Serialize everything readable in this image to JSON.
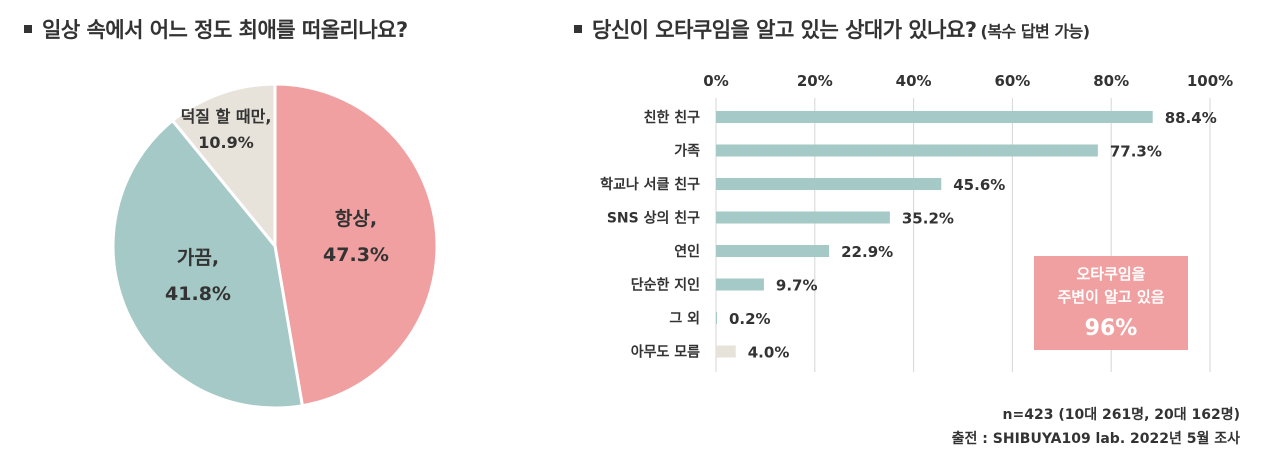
{
  "left_title": "일상 속에서 어느 정도 최애를 떠올리나요?",
  "right_title": "당신이 오타쿠임을 알고 있는 상대가 있나요?",
  "right_title_note": "(복수 답변 가능)",
  "footer": {
    "sample": "n=423 (10대 261명, 20대 162명)",
    "source": "출전 : SHIBUYA109 lab. 2022년 5월 조사"
  },
  "callout": {
    "line1": "오타쿠임을",
    "line2": "주변이 알고 있음",
    "value": "96%"
  },
  "chart_data": [
    {
      "type": "pie",
      "slices": [
        {
          "label": "항상,",
          "value": 47.3,
          "value_label": "47.3%",
          "color": "#F0A0A0"
        },
        {
          "label": "가끔,",
          "value": 41.8,
          "value_label": "41.8%",
          "color": "#A5C9C6"
        },
        {
          "label": "덕질 할 때만,",
          "value": 10.9,
          "value_label": "10.9%",
          "color": "#E8E3DA"
        }
      ]
    },
    {
      "type": "bar",
      "orientation": "horizontal",
      "x_ticks": [
        "0%",
        "20%",
        "40%",
        "60%",
        "80%",
        "100%"
      ],
      "xlim": [
        0,
        100
      ],
      "grid": true,
      "categories": [
        "친한 친구",
        "가족",
        "학교나 서클 친구",
        "SNS 상의 친구",
        "연인",
        "단순한 지인",
        "그 외",
        "아무도 모름"
      ],
      "values": [
        88.4,
        77.3,
        45.6,
        35.2,
        22.9,
        9.7,
        0.2,
        4.0
      ],
      "value_labels": [
        "88.4%",
        "77.3%",
        "45.6%",
        "35.2%",
        "22.9%",
        "9.7%",
        "0.2%",
        "4.0%"
      ],
      "bar_colors": [
        "#A5C9C6",
        "#A5C9C6",
        "#A5C9C6",
        "#A5C9C6",
        "#A5C9C6",
        "#A5C9C6",
        "#A5C9C6",
        "#E8E3DA"
      ]
    }
  ]
}
